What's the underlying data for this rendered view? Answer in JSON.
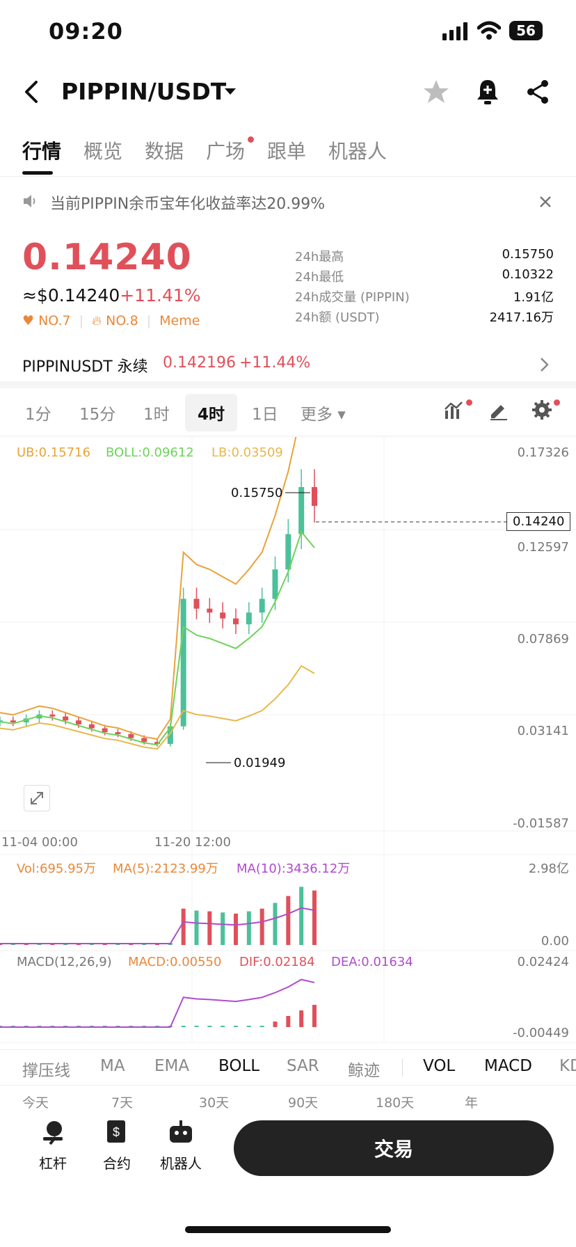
{
  "status_bar": {
    "time": "09:20",
    "battery": "56"
  },
  "header": {
    "pair": "PIPPIN/USDT"
  },
  "tabs": [
    "行情",
    "概览",
    "数据",
    "广场",
    "跟单",
    "机器人"
  ],
  "notice": {
    "text": "当前PIPPIN余币宝年化收益率达20.99%"
  },
  "price": {
    "last": "0.14240",
    "usd": "≈$0.14240",
    "change": "+11.41%",
    "rank1": "NO.7",
    "rank2": "NO.8",
    "category": "Meme"
  },
  "stats": [
    {
      "label": "24h最高",
      "value": "0.15750"
    },
    {
      "label": "24h最低",
      "value": "0.10322"
    },
    {
      "label": "24h成交量 (PIPPIN)",
      "value": "1.91亿"
    },
    {
      "label": "24h额 (USDT)",
      "value": "2417.16万"
    }
  ],
  "perp": {
    "name": "PIPPINUSDT 永续",
    "price": "0.142196",
    "change": "+11.44%"
  },
  "timeframes": [
    "1分",
    "15分",
    "1时",
    "4时",
    "1日",
    "更多"
  ],
  "selected_timeframe": "4时",
  "boll": {
    "ub": "UB:0.15716",
    "boll": "BOLL:0.09612",
    "lb": "LB:0.03509"
  },
  "price_axis": [
    "0.17326",
    "0.12597",
    "0.07869",
    "0.03141",
    "-0.01587"
  ],
  "current_price_tag": "0.14240",
  "high_marker": "0.15750",
  "low_marker": "0.01949",
  "time_axis": [
    "11-04 00:00",
    "11-20 12:00"
  ],
  "volume": {
    "vol": "Vol:695.95万",
    "ma5": "MA(5):2123.99万",
    "ma10": "MA(10):3436.12万",
    "axis_top": "2.98亿",
    "axis_bottom": "0.00"
  },
  "macd": {
    "title": "MACD(12,26,9)",
    "macd": "MACD:0.00550",
    "dif": "DIF:0.02184",
    "dea": "DEA:0.01634",
    "axis_top": "0.02424",
    "axis_bottom": "-0.00449"
  },
  "indicator_tabs": [
    "撑压线",
    "MA",
    "EMA",
    "BOLL",
    "SAR",
    "鲸迹",
    "VOL",
    "MACD",
    "KD"
  ],
  "periods": [
    "今天",
    "7天",
    "30天",
    "90天",
    "180天",
    "年"
  ],
  "footer": {
    "leverage": "杠杆",
    "contract": "合约",
    "bot": "机器人",
    "trade": "交易"
  },
  "colors": {
    "up": "#4cc09a",
    "down": "#e0505a",
    "ub": "#e8a33a",
    "mid": "#6dd35a",
    "lb": "#e8b84a",
    "ma10": "#b04ad0"
  },
  "chart_data": {
    "type": "line",
    "title": "",
    "xlabel": "",
    "ylabel": "",
    "ylim": [
      -0.01587,
      0.17326
    ],
    "series": [
      {
        "name": "",
        "values": [
          0.033,
          0.032,
          0.034,
          0.036,
          0.035,
          0.033,
          0.031,
          0.029,
          0.027,
          0.026,
          0.024,
          0.022,
          0.021,
          0.03,
          0.095,
          0.09,
          0.088,
          0.085,
          0.082,
          0.088,
          0.095,
          0.11,
          0.128,
          0.152,
          0.1424
        ]
      }
    ]
  }
}
